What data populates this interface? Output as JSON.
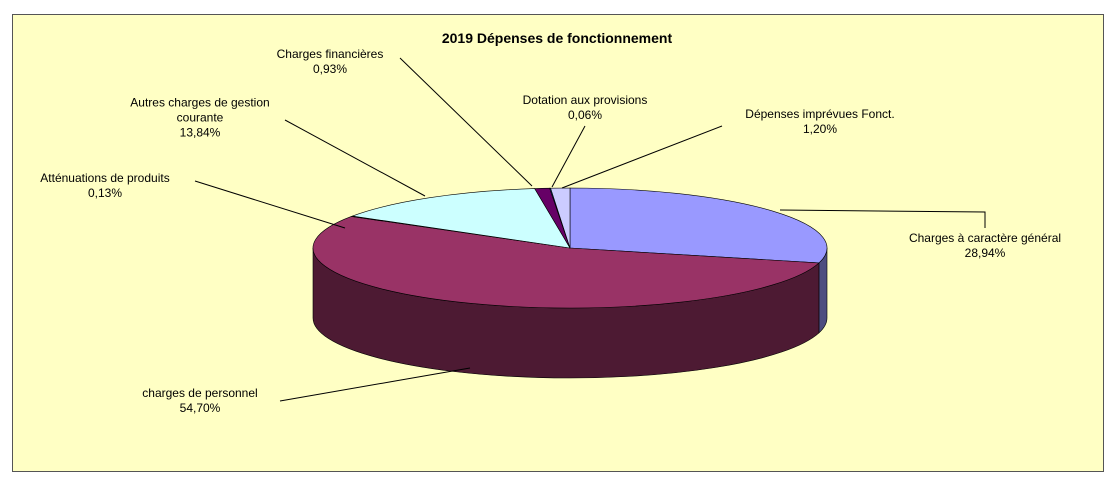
{
  "chart_data": {
    "type": "pie3d",
    "title": "2019 Dépenses de fonctionnement",
    "categories": [
      "Charges à caractère général",
      "charges de personnel",
      "Atténuations de produits",
      "Autres charges de gestion courante",
      "Charges financières",
      "Dotation aux provisions",
      "Dépenses imprévues Fonct."
    ],
    "values": [
      28.94,
      54.7,
      0.13,
      13.84,
      0.93,
      0.06,
      1.2
    ],
    "value_labels": [
      "28,94%",
      "54,70%",
      "0,13%",
      "13,84%",
      "0,93%",
      "0,06%",
      "1,20%"
    ],
    "colors": [
      "#9999ff",
      "#993366",
      "#ffffcc",
      "#ccffff",
      "#660066",
      "#0066cc",
      "#ccccff"
    ]
  }
}
